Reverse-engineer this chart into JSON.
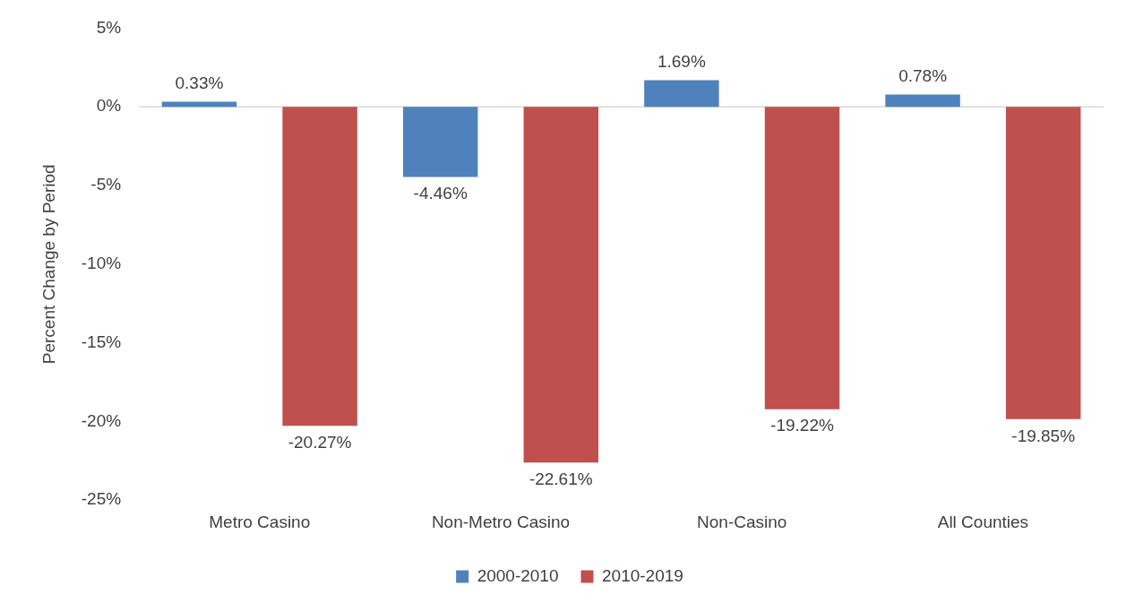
{
  "chart_data": {
    "type": "bar",
    "ylabel": "Percent Change by Period",
    "categories": [
      "Metro Casino",
      "Non-Metro Casino",
      "Non-Casino",
      "All Counties"
    ],
    "series": [
      {
        "name": "2000-2010",
        "color": "#4f81bd",
        "values": [
          0.33,
          -4.46,
          1.69,
          0.78
        ],
        "value_labels": [
          "0.33%",
          "-4.46%",
          "1.69%",
          "0.78%"
        ]
      },
      {
        "name": "2010-2019",
        "color": "#c0504d",
        "values": [
          -20.27,
          -22.61,
          -19.22,
          -19.85
        ],
        "value_labels": [
          "-20.27%",
          "-22.61%",
          "-19.22%",
          "-19.85%"
        ]
      }
    ],
    "ylim": [
      -25,
      5
    ],
    "yticks": [
      {
        "value": 5,
        "label": "5%"
      },
      {
        "value": 0,
        "label": "0%"
      },
      {
        "value": -5,
        "label": "-5%"
      },
      {
        "value": -10,
        "label": "-10%"
      },
      {
        "value": -15,
        "label": "-15%"
      },
      {
        "value": -20,
        "label": "-20%"
      },
      {
        "value": -25,
        "label": "-25%"
      }
    ],
    "ref_lines": [
      {
        "axis": "y",
        "value": 0,
        "color": "#d9d9d9"
      }
    ],
    "grid": false,
    "legend": "bottom"
  }
}
